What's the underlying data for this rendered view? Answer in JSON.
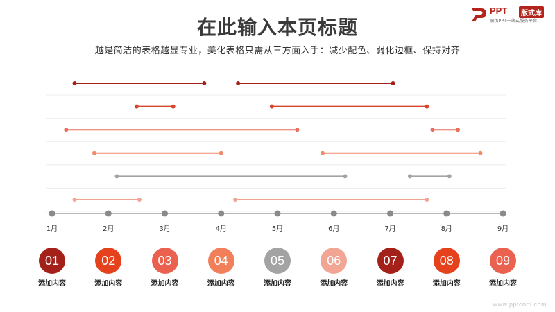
{
  "header": {
    "title": "在此输入本页标题",
    "subtitle": "越是简洁的表格越显专业，美化表格只需从三方面入手：减少配色、弱化边框、保持对齐"
  },
  "logo": {
    "text": "PPT",
    "badge": "版式库",
    "tagline": "职场PPT一站式服务平台",
    "brand_color": "#b3241d"
  },
  "chart_data": {
    "type": "gantt",
    "months": [
      "1月",
      "2月",
      "3月",
      "4月",
      "5月",
      "6月",
      "7月",
      "8月",
      "9月"
    ],
    "grid": true,
    "rows": [
      {
        "color": "#a4211a",
        "bars": [
          [
            1.4,
            3.7
          ],
          [
            4.3,
            7.05
          ]
        ]
      },
      {
        "color": "#d9442a",
        "bars": [
          [
            2.5,
            3.15
          ],
          [
            4.9,
            7.65
          ]
        ]
      },
      {
        "color": "#e8705b",
        "bars": [
          [
            1.25,
            5.35
          ],
          [
            7.75,
            8.2
          ]
        ]
      },
      {
        "color": "#f08c6d",
        "bars": [
          [
            1.75,
            4.0
          ],
          [
            5.8,
            8.6
          ]
        ]
      },
      {
        "color": "#a3a3a3",
        "bars": [
          [
            2.15,
            6.2
          ],
          [
            7.35,
            8.05
          ]
        ]
      },
      {
        "color": "#f2a593",
        "bars": [
          [
            1.4,
            2.55
          ],
          [
            4.25,
            7.65
          ]
        ]
      }
    ]
  },
  "items": [
    {
      "num": "01",
      "label": "添加内容",
      "color": "#a4211a"
    },
    {
      "num": "02",
      "label": "添加内容",
      "color": "#e5411d"
    },
    {
      "num": "03",
      "label": "添加内容",
      "color": "#eb6150"
    },
    {
      "num": "04",
      "label": "添加内容",
      "color": "#f07f5a"
    },
    {
      "num": "05",
      "label": "添加内容",
      "color": "#a3a3a3"
    },
    {
      "num": "06",
      "label": "添加内容",
      "color": "#f2a593"
    },
    {
      "num": "07",
      "label": "添加内容",
      "color": "#a4211a"
    },
    {
      "num": "08",
      "label": "添加内容",
      "color": "#e5411d"
    },
    {
      "num": "09",
      "label": "添加内容",
      "color": "#eb6150"
    }
  ],
  "watermark": "www.pptcool.com"
}
